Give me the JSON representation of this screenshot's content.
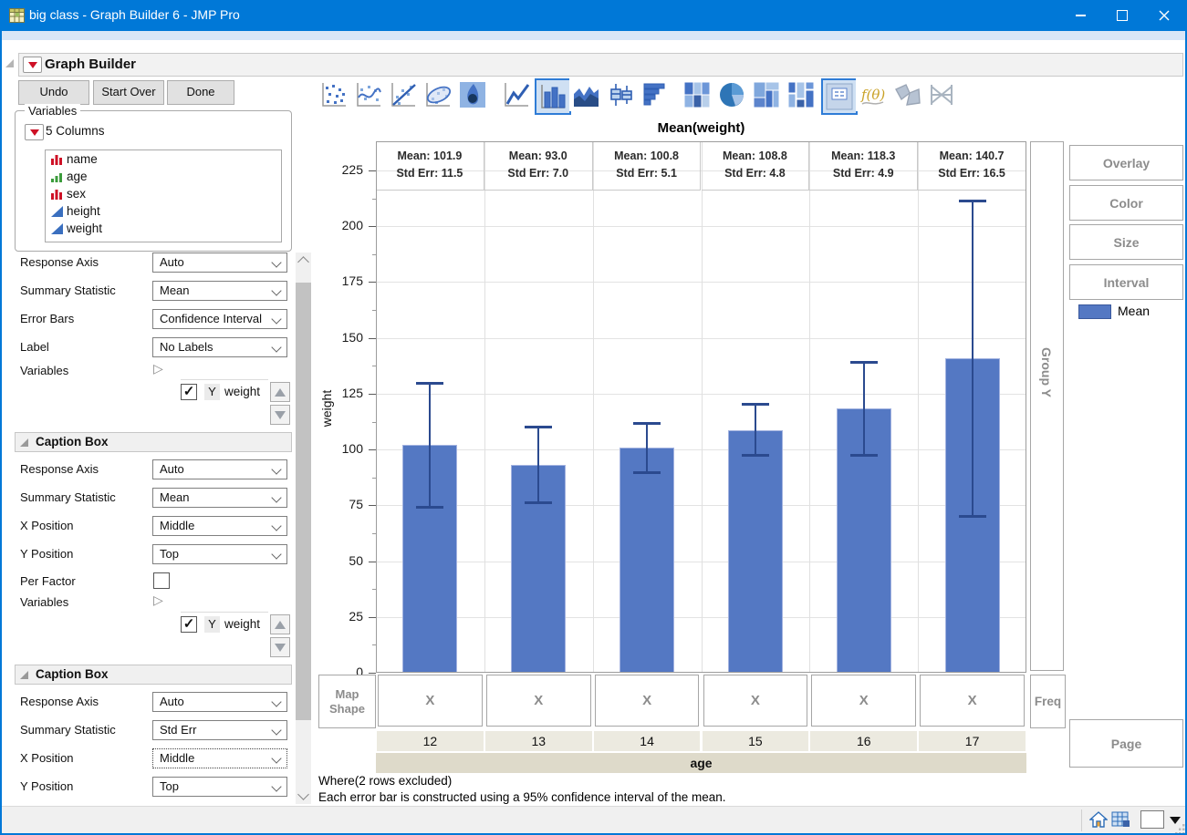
{
  "window": {
    "title": "big class - Graph Builder 6 - JMP Pro",
    "controls": [
      "minimize",
      "maximize",
      "close"
    ],
    "app_icon": "jmp-data-table"
  },
  "header": {
    "title": "Graph Builder"
  },
  "actions": {
    "undo": "Undo",
    "start_over": "Start Over",
    "done": "Done"
  },
  "icon_toolbar": [
    {
      "name": "scatter",
      "selected": false
    },
    {
      "name": "smoother",
      "selected": false
    },
    {
      "name": "line-of-fit",
      "selected": false
    },
    {
      "name": "ellipse",
      "selected": false
    },
    {
      "name": "contour",
      "selected": false
    },
    {
      "name": "line",
      "selected": false
    },
    {
      "name": "bar",
      "selected": true
    },
    {
      "name": "area",
      "selected": false
    },
    {
      "name": "box-plot",
      "selected": false
    },
    {
      "name": "histogram",
      "selected": false
    },
    {
      "name": "heatmap",
      "selected": false
    },
    {
      "name": "pie",
      "selected": false
    },
    {
      "name": "treemap",
      "selected": false
    },
    {
      "name": "mosaic",
      "selected": false
    },
    {
      "name": "caption-box",
      "selected": true
    },
    {
      "name": "formula",
      "selected": false
    },
    {
      "name": "map-shape",
      "selected": false
    },
    {
      "name": "parallel",
      "selected": false
    }
  ],
  "variables_panel": {
    "title": "Variables",
    "columns_label": "5 Columns",
    "columns": [
      {
        "name": "name",
        "type": "nominal"
      },
      {
        "name": "age",
        "type": "ordinal"
      },
      {
        "name": "sex",
        "type": "nominal"
      },
      {
        "name": "height",
        "type": "continuous"
      },
      {
        "name": "weight",
        "type": "continuous"
      }
    ]
  },
  "left_panel": {
    "bars_section": {
      "fields": [
        {
          "label": "Response Axis",
          "value": "Auto"
        },
        {
          "label": "Summary Statistic",
          "value": "Mean"
        },
        {
          "label": "Error Bars",
          "value": "Confidence Interval"
        },
        {
          "label": "Label",
          "value": "No Labels"
        }
      ],
      "variables_label": "Variables",
      "variable_row": {
        "checked": true,
        "axis": "Y",
        "variable": "weight"
      }
    },
    "caption_box_1": {
      "title": "Caption Box",
      "fields": [
        {
          "label": "Response Axis",
          "value": "Auto"
        },
        {
          "label": "Summary Statistic",
          "value": "Mean"
        },
        {
          "label": "X Position",
          "value": "Middle"
        },
        {
          "label": "Y Position",
          "value": "Top"
        }
      ],
      "per_factor_label": "Per Factor",
      "per_factor_checked": false,
      "variables_label": "Variables",
      "variable_row": {
        "checked": true,
        "axis": "Y",
        "variable": "weight"
      }
    },
    "caption_box_2": {
      "title": "Caption Box",
      "fields": [
        {
          "label": "Response Axis",
          "value": "Auto"
        },
        {
          "label": "Summary Statistic",
          "value": "Std Err"
        },
        {
          "label": "X Position",
          "value": "Middle",
          "focused": true
        },
        {
          "label": "Y Position",
          "value": "Top"
        }
      ]
    }
  },
  "chart_data": {
    "type": "bar",
    "title": "Mean(weight)",
    "xlabel": "age",
    "ylabel": "weight",
    "categories": [
      "12",
      "13",
      "14",
      "15",
      "16",
      "17"
    ],
    "series": [
      {
        "name": "Mean",
        "values": [
          101.9,
          93.0,
          100.8,
          108.8,
          118.3,
          140.7
        ]
      }
    ],
    "std_err": [
      11.5,
      7.0,
      5.1,
      4.8,
      4.9,
      16.5
    ],
    "error_bars": {
      "kind": "95% confidence interval of the mean",
      "low": [
        73.8,
        75.9,
        89.6,
        97.1,
        97.2,
        69.7
      ],
      "high": [
        130.0,
        110.1,
        112.0,
        120.5,
        139.4,
        211.7
      ]
    },
    "ylim": [
      0,
      225
    ],
    "yticks": [
      0,
      25,
      50,
      75,
      100,
      125,
      150,
      175,
      200,
      225
    ],
    "grid": true,
    "caption_prefixes": {
      "mean": "Mean:",
      "std_err": "Std Err:"
    },
    "bar_color": "#5478C3",
    "bar_border": "#A3B3E0",
    "error_bar_color": "#2B4A8F",
    "legend": {
      "label": "Mean",
      "position": "right"
    }
  },
  "drop_zones": {
    "map_shape": "Map Shape",
    "x": "X",
    "freq": "Freq",
    "group_y": "Group Y",
    "page": "Page",
    "overlay": "Overlay",
    "color": "Color",
    "size": "Size",
    "interval": "Interval"
  },
  "legend": {
    "label": "Mean"
  },
  "footnotes": {
    "where": "Where(2 rows excluded)",
    "error_bar_note": "Each error bar is constructed using a 95% confidence interval of the mean."
  },
  "status_bar": {
    "icons": [
      "home",
      "data-table",
      "color-swatch",
      "dropdown-arrow",
      "resize-grip"
    ]
  }
}
